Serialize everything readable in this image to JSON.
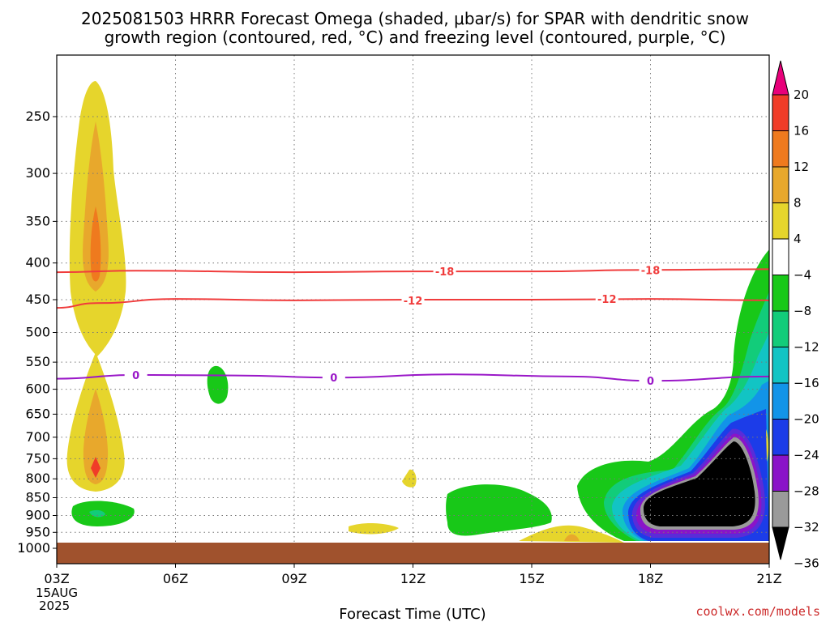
{
  "title": {
    "line1": "2025081503 HRRR Forecast Omega (shaded, μbar/s) for SPAR with dendritic snow",
    "line2": "growth region (contoured, red, °C) and freezing level (contoured, purple, °C)"
  },
  "credit": "coolwx.com/models",
  "chart_data": {
    "type": "time-height contour",
    "title": "2025081503 HRRR Forecast Omega (shaded, μbar/s) for SPAR with dendritic snow growth region (contoured, red, °C) and freezing level (contoured, purple, °C)",
    "xlabel": "Forecast Time (UTC)",
    "x_ticks": [
      "03Z",
      "06Z",
      "09Z",
      "12Z",
      "15Z",
      "18Z",
      "21Z"
    ],
    "x_hours": [
      3,
      6,
      9,
      12,
      15,
      18,
      21
    ],
    "x_date_lines": [
      "15AUG",
      "2025"
    ],
    "xlim": [
      3,
      21
    ],
    "y_ticks": [
      250,
      300,
      350,
      400,
      450,
      500,
      550,
      600,
      650,
      700,
      750,
      800,
      850,
      900,
      950,
      1000
    ],
    "ylim": [
      1025,
      200
    ],
    "y_scale": "log-pressure",
    "grid": true,
    "colorbar": {
      "labels": [
        "20",
        "16",
        "12",
        "8",
        "4",
        "−4",
        "−8",
        "−12",
        "−16",
        "−20",
        "−24",
        "−28",
        "−32",
        "−36"
      ],
      "top_arrow_color": "#e8007a",
      "colors": [
        "#f03c28",
        "#ef7a1e",
        "#e8a82c",
        "#e6d52c",
        "#ffffff",
        "#18c818",
        "#12cc7a",
        "#12c4c4",
        "#1294e8",
        "#1c3ce8",
        "#8a14c8",
        "#9a9a9a"
      ],
      "bottom_arrow_color": "#000000"
    },
    "contour_labels": [
      {
        "variable": "temperature",
        "color": "#f03c3c",
        "text": "-18",
        "hour": 12.8,
        "pressure": 411
      },
      {
        "variable": "temperature",
        "color": "#f03c3c",
        "text": "-18",
        "hour": 18.0,
        "pressure": 409
      },
      {
        "variable": "temperature",
        "color": "#f03c3c",
        "text": "-12",
        "hour": 12.0,
        "pressure": 451
      },
      {
        "variable": "temperature",
        "color": "#f03c3c",
        "text": "-12",
        "hour": 16.9,
        "pressure": 449
      },
      {
        "variable": "freezing_level",
        "color": "#9a18c8",
        "text": "0",
        "hour": 5.0,
        "pressure": 573
      },
      {
        "variable": "freezing_level",
        "color": "#9a18c8",
        "text": "0",
        "hour": 10.0,
        "pressure": 578
      },
      {
        "variable": "freezing_level",
        "color": "#9a18c8",
        "text": "0",
        "hour": 18.0,
        "pressure": 584
      }
    ],
    "isotherms": [
      {
        "value": -18,
        "color": "#f03c3c",
        "points": [
          [
            3,
            412
          ],
          [
            5,
            410
          ],
          [
            9,
            412
          ],
          [
            12,
            411
          ],
          [
            15,
            411
          ],
          [
            18,
            409
          ],
          [
            21,
            408
          ]
        ]
      },
      {
        "value": -12,
        "color": "#f03c3c",
        "points": [
          [
            3,
            462
          ],
          [
            4,
            455
          ],
          [
            6,
            449
          ],
          [
            9,
            451
          ],
          [
            12,
            450
          ],
          [
            15,
            450
          ],
          [
            18,
            449
          ],
          [
            21,
            451
          ]
        ]
      },
      {
        "value": 0,
        "color": "#9a18c8",
        "points": [
          [
            3,
            580
          ],
          [
            5,
            573
          ],
          [
            7.5,
            574
          ],
          [
            10,
            578
          ],
          [
            13,
            572
          ],
          [
            16,
            576
          ],
          [
            18,
            584
          ],
          [
            21,
            576
          ]
        ]
      }
    ]
  }
}
